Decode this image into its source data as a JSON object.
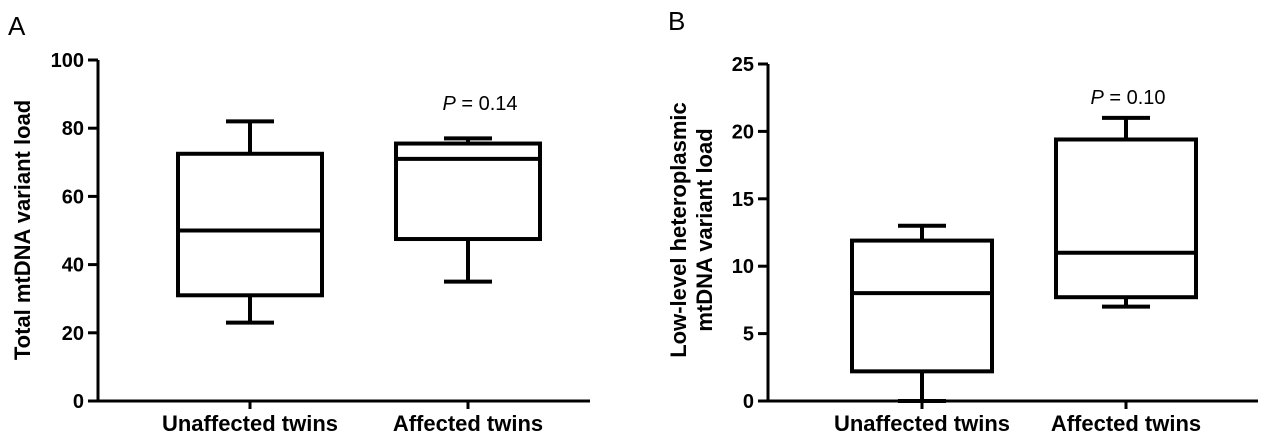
{
  "chart_data": [
    {
      "type": "box",
      "panel": "A",
      "ylabel": "Total mtDNA variant load",
      "ylim": [
        0,
        100
      ],
      "yticks": [
        0,
        20,
        40,
        60,
        80,
        100
      ],
      "categories": [
        "Unaffected twins",
        "Affected twins"
      ],
      "boxes": [
        {
          "category": "Unaffected twins",
          "min": 23,
          "q1": 31,
          "median": 50,
          "q3": 72.5,
          "max": 82
        },
        {
          "category": "Affected twins",
          "min": 35,
          "q1": 47.5,
          "median": 71,
          "q3": 75.5,
          "max": 77
        }
      ],
      "annotation": {
        "label": "P",
        "text": " = 0.14"
      }
    },
    {
      "type": "box",
      "panel": "B",
      "ylabel_lines": [
        "Low-level heteroplasmic",
        "mtDNA variant load"
      ],
      "ylim": [
        0,
        25
      ],
      "yticks": [
        0,
        5,
        10,
        15,
        20,
        25
      ],
      "categories": [
        "Unaffected twins",
        "Affected twins"
      ],
      "boxes": [
        {
          "category": "Unaffected twins",
          "min": 0,
          "q1": 2.2,
          "median": 8,
          "q3": 11.9,
          "max": 13
        },
        {
          "category": "Affected twins",
          "min": 7,
          "q1": 7.7,
          "median": 11,
          "q3": 19.4,
          "max": 21
        }
      ],
      "annotation": {
        "label": "P",
        "text": " = 0.10"
      }
    }
  ]
}
